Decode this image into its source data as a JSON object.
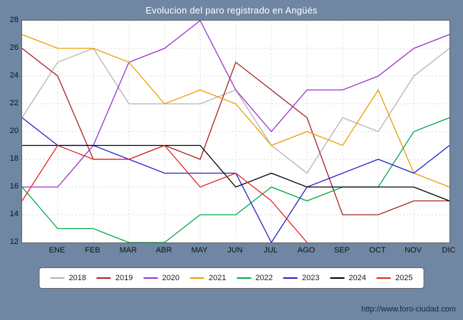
{
  "title": "Evolucion del paro registrado en Angüés",
  "footer": {
    "url": "http://www.foro-ciudad.com"
  },
  "colors": {
    "background": "#6f87a3",
    "plot_background": "#ffffff",
    "grid": "#d8d8d8",
    "axis_text": "#111111",
    "title_text": "#ffffff",
    "legend_border": "#666666",
    "url_text": "#102a43"
  },
  "chart_data": {
    "type": "line",
    "title": "Evolucion del paro registrado en Angüés",
    "categories": [
      "",
      "ENE",
      "FEB",
      "MAR",
      "ABR",
      "MAY",
      "JUN",
      "JUL",
      "AGO",
      "SEP",
      "OCT",
      "NOV",
      "DIC"
    ],
    "ylim": [
      12,
      28
    ],
    "y_ticks": [
      12,
      14,
      16,
      18,
      20,
      22,
      24,
      26,
      28
    ],
    "grid": true,
    "legend_position": "bottom",
    "series": [
      {
        "name": "2018",
        "color": "#b3b3b3",
        "values": [
          21,
          25,
          26,
          22,
          22,
          22,
          23,
          19,
          17,
          21,
          20,
          24,
          26
        ]
      },
      {
        "name": "2019",
        "color": "#a52121",
        "values": [
          26,
          24,
          18,
          18,
          19,
          18,
          25,
          23,
          21,
          14,
          14,
          15,
          15
        ]
      },
      {
        "name": "2020",
        "color": "#9932cc",
        "values": [
          16,
          16,
          19,
          25,
          26,
          28,
          23,
          20,
          23,
          23,
          24,
          26,
          27
        ]
      },
      {
        "name": "2021",
        "color": "#e8a000",
        "values": [
          27,
          26,
          26,
          25,
          22,
          23,
          22,
          19,
          20,
          19,
          23,
          17,
          16
        ]
      },
      {
        "name": "2022",
        "color": "#00a846",
        "values": [
          16,
          13,
          13,
          12,
          12,
          14,
          14,
          16,
          15,
          16,
          16,
          20,
          21
        ]
      },
      {
        "name": "2023",
        "color": "#2222cc",
        "values": [
          21,
          19,
          19,
          18,
          17,
          17,
          17,
          12,
          16,
          17,
          18,
          17,
          19
        ]
      },
      {
        "name": "2024",
        "color": "#000000",
        "values": [
          19,
          19,
          19,
          19,
          19,
          19,
          16,
          17,
          16,
          16,
          16,
          16,
          15
        ]
      },
      {
        "name": "2025",
        "color": "#e62222",
        "values": [
          15,
          19,
          18,
          18,
          19,
          16,
          17,
          15,
          12
        ]
      }
    ]
  }
}
